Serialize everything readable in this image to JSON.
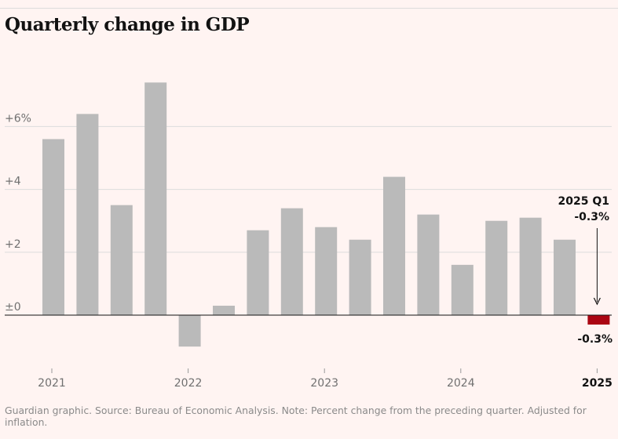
{
  "title": "Quarterly change in GDP",
  "footer": "Guardian graphic. Source: Bureau of Economic Analysis. Note: Percent change from the preceding quarter. Adjusted for inflation.",
  "colors": {
    "bar": "#bababa",
    "highlight": "#ab0613",
    "gridline": "#dcdcdc",
    "zeroline": "#121212",
    "background": "#fff4f2"
  },
  "chart_data": {
    "type": "bar",
    "title": "Quarterly change in GDP",
    "xlabel": "",
    "ylabel": "",
    "ylim": [
      -1.3,
      7.8
    ],
    "y_ticks": [
      {
        "value": 6,
        "label": "+6%"
      },
      {
        "value": 4,
        "label": "+4"
      },
      {
        "value": 2,
        "label": "+2"
      },
      {
        "value": 0,
        "label": "±0"
      }
    ],
    "categories": [
      "2021 Q1",
      "2021 Q2",
      "2021 Q3",
      "2021 Q4",
      "2022 Q1",
      "2022 Q2",
      "2022 Q3",
      "2022 Q4",
      "2023 Q1",
      "2023 Q2",
      "2023 Q3",
      "2023 Q4",
      "2024 Q1",
      "2024 Q2",
      "2024 Q3",
      "2024 Q4",
      "2025 Q1"
    ],
    "values": [
      5.6,
      6.4,
      3.5,
      7.4,
      -1.0,
      0.3,
      2.7,
      3.4,
      2.8,
      2.4,
      4.4,
      3.2,
      1.6,
      3.0,
      3.1,
      2.4,
      -0.3
    ],
    "x_tick_labels": [
      {
        "label": "2021",
        "index": 0,
        "bold": false
      },
      {
        "label": "2022",
        "index": 4,
        "bold": false
      },
      {
        "label": "2023",
        "index": 8,
        "bold": false
      },
      {
        "label": "2024",
        "index": 12,
        "bold": false
      },
      {
        "label": "2025",
        "index": 16,
        "bold": true
      }
    ],
    "highlight_index": 16,
    "annotation": {
      "line1": "2025 Q1",
      "line2": "-0.3%",
      "value_label": "-0.3%"
    }
  }
}
